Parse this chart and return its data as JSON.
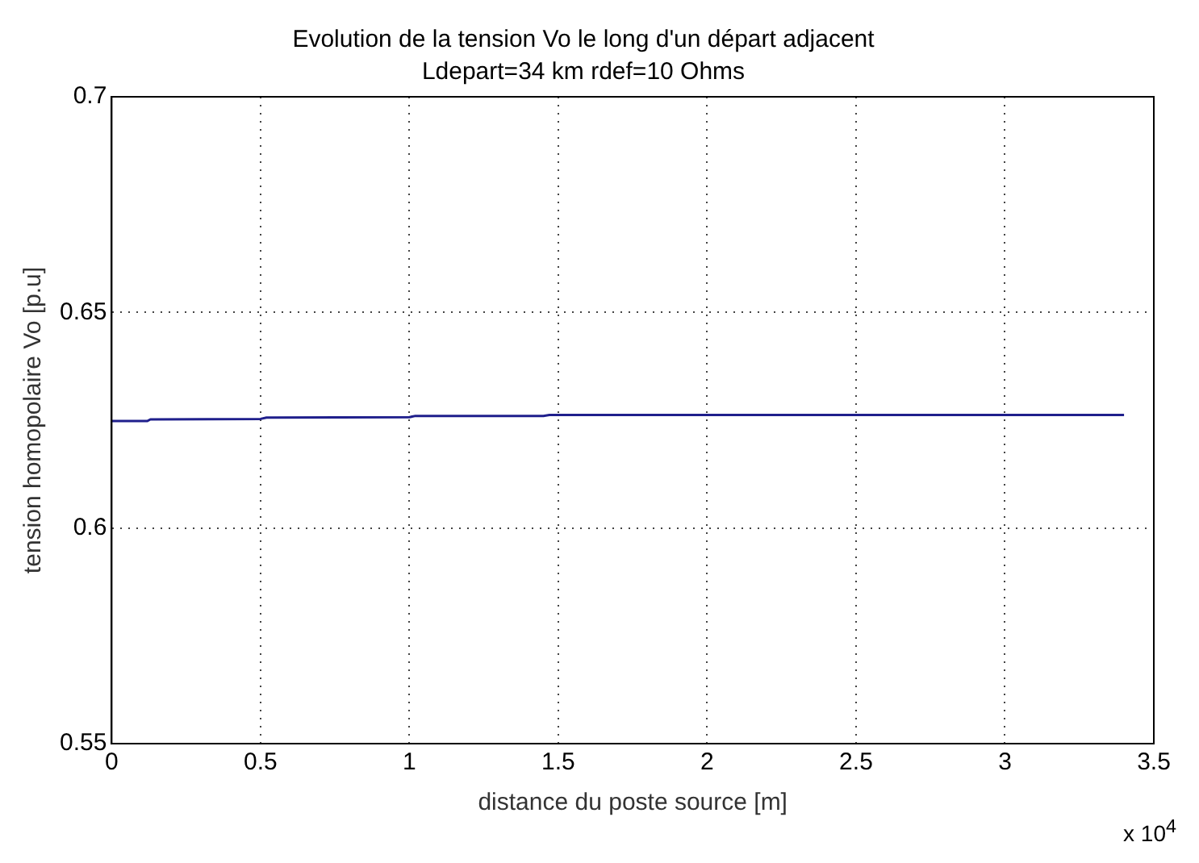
{
  "chart_data": {
    "type": "line",
    "title": "Evolution de la tension Vo le long d'un départ adjacent",
    "subtitle": "Ldepart=34 km rdef=10 Ohms",
    "xlabel": "distance du poste source [m]",
    "ylabel": "tension homopolaire Vo [p.u]",
    "annotations": [
      "x 10$^{4}$"
    ],
    "x": [
      0,
      0.12,
      0.13,
      0.5,
      0.52,
      1.0,
      1.02,
      1.45,
      1.47,
      3.4
    ],
    "series": [
      {
        "color": "#1f1f8c",
        "values": [
          0.6248,
          0.6248,
          0.6252,
          0.6253,
          0.6256,
          0.6257,
          0.626,
          0.626,
          0.6262,
          0.6262
        ]
      }
    ],
    "xlim": [
      0,
      3.5
    ],
    "xticks": [
      0,
      0.5,
      1,
      1.5,
      2,
      2.5,
      3,
      3.5
    ],
    "ylim": [
      0.55,
      0.7
    ],
    "yticks": [
      0.55,
      0.6,
      0.65,
      0.7
    ],
    "grid": true,
    "legend": false,
    "line_style": "solid",
    "marker": "none"
  }
}
